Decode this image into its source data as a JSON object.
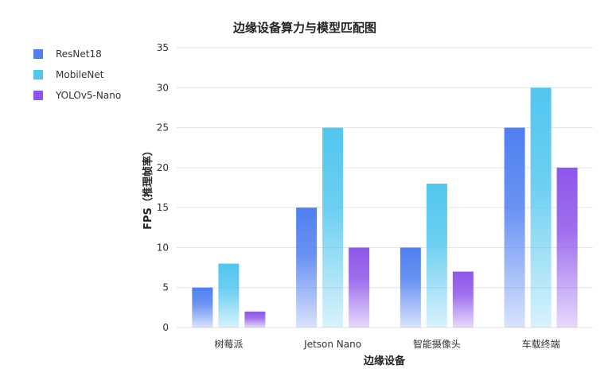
{
  "chart_data": {
    "type": "bar",
    "title": "边缘设备算力与模型匹配图",
    "xlabel": "边缘设备",
    "ylabel": "FPS（推理帧率）",
    "categories": [
      "树莓派",
      "Jetson Nano",
      "智能摄像头",
      "车载终端"
    ],
    "series": [
      {
        "name": "ResNet18",
        "values": [
          5,
          15,
          10,
          25
        ],
        "color": "#4f7ff0"
      },
      {
        "name": "MobileNet",
        "values": [
          8,
          25,
          18,
          30
        ],
        "color": "#52c6ef"
      },
      {
        "name": "YOLOv5-Nano",
        "values": [
          2,
          10,
          7,
          20
        ],
        "color": "#8e56ea"
      }
    ],
    "ylim": [
      0,
      35
    ],
    "yticks": [
      0,
      5,
      10,
      15,
      20,
      25,
      30,
      35
    ],
    "grid": true,
    "legend_position": "top-left"
  }
}
